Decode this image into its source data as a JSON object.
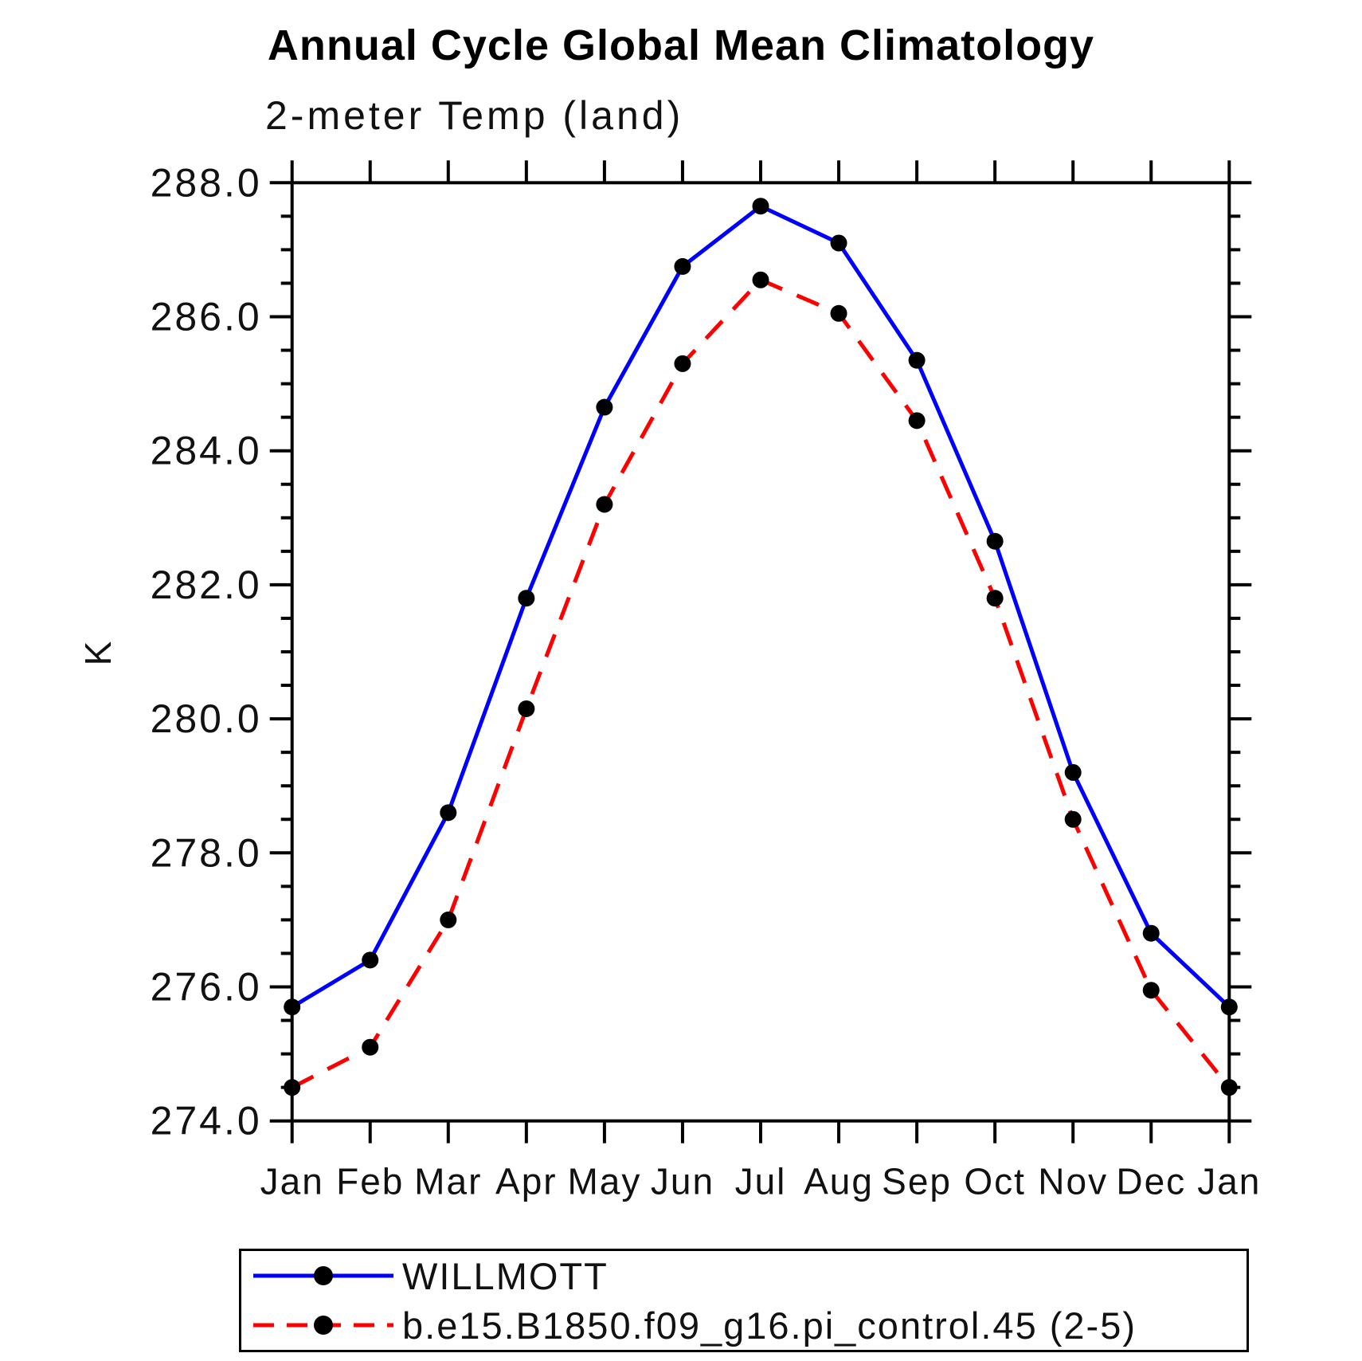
{
  "chart_data": {
    "type": "line",
    "title": "Annual Cycle Global Mean Climatology",
    "subtitle": "2-meter Temp (land)",
    "ylabel": "K",
    "xlabel": "",
    "categories": [
      "Jan",
      "Feb",
      "Mar",
      "Apr",
      "May",
      "Jun",
      "Jul",
      "Aug",
      "Sep",
      "Oct",
      "Nov",
      "Dec",
      "Jan"
    ],
    "ylim": [
      274.0,
      288.0
    ],
    "ytick_step": 2.0,
    "yminor_step": 0.5,
    "ytick_format_decimals": 1,
    "grid": false,
    "legend_position": "bottom",
    "axis_color": "#000000",
    "marker": "filled-circle",
    "marker_color": "#000000",
    "series": [
      {
        "name": "WILLMOTT",
        "color": "#0000ff",
        "line_style": "solid",
        "values": [
          275.7,
          276.4,
          278.6,
          281.8,
          284.65,
          286.75,
          287.65,
          287.1,
          285.35,
          282.65,
          279.2,
          276.8,
          275.7
        ]
      },
      {
        "name": "b.e15.B1850.f09_g16.pi_control.45 (2-5)",
        "color": "#ff0000",
        "line_style": "dashed",
        "values": [
          274.5,
          275.1,
          277.0,
          280.15,
          283.2,
          285.3,
          286.55,
          286.05,
          284.45,
          281.8,
          278.5,
          275.95,
          274.5
        ]
      }
    ]
  }
}
